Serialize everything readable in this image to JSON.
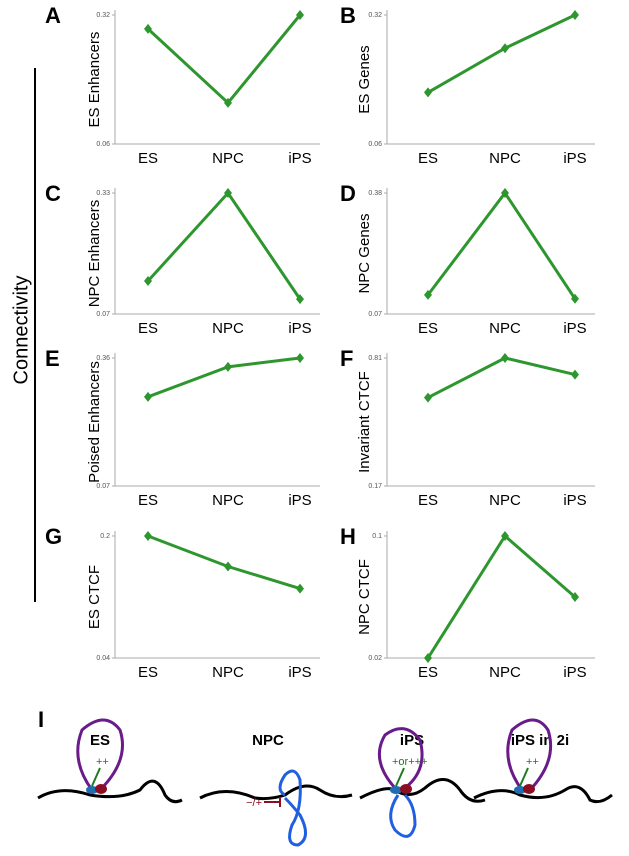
{
  "figure": {
    "side_label": "Connectivity"
  },
  "chart_data": [
    {
      "type": "line",
      "panel_label": "A",
      "ylabel": "ES Enhancers",
      "categories": [
        "ES",
        "NPC",
        "iPS"
      ],
      "values": [
        0.292,
        0.143,
        0.32
      ],
      "color": "#2e962e",
      "ylim": [
        0.06,
        0.32
      ],
      "yticks": [
        0.06,
        0.32
      ]
    },
    {
      "type": "line",
      "panel_label": "B",
      "ylabel": "ES Genes",
      "categories": [
        "ES",
        "NPC",
        "iPS"
      ],
      "values": [
        0.164,
        0.253,
        0.32
      ],
      "color": "#2e962e",
      "ylim": [
        0.06,
        0.32
      ],
      "yticks": [
        0.06,
        0.32
      ]
    },
    {
      "type": "line",
      "panel_label": "C",
      "ylabel": "NPC Enhancers",
      "categories": [
        "ES",
        "NPC",
        "iPS"
      ],
      "values": [
        0.141,
        0.33,
        0.102
      ],
      "color": "#2e962e",
      "ylim": [
        0.07,
        0.33
      ],
      "yticks": [
        0.07,
        0.33
      ]
    },
    {
      "type": "line",
      "panel_label": "D",
      "ylabel": "NPC Genes",
      "categories": [
        "ES",
        "NPC",
        "iPS"
      ],
      "values": [
        0.119,
        0.38,
        0.109
      ],
      "color": "#2e962e",
      "ylim": [
        0.07,
        0.38
      ],
      "yticks": [
        0.07,
        0.38
      ]
    },
    {
      "type": "line",
      "panel_label": "E",
      "ylabel": "Poised Enhancers",
      "categories": [
        "ES",
        "NPC",
        "iPS"
      ],
      "values": [
        0.272,
        0.34,
        0.36
      ],
      "color": "#2e962e",
      "ylim": [
        0.07,
        0.36
      ],
      "yticks": [
        0.07,
        0.36
      ]
    },
    {
      "type": "line",
      "panel_label": "F",
      "ylabel": "Invariant CTCF",
      "categories": [
        "ES",
        "NPC",
        "iPS"
      ],
      "values": [
        0.612,
        0.81,
        0.727
      ],
      "color": "#2e962e",
      "ylim": [
        0.17,
        0.81
      ],
      "yticks": [
        0.17,
        0.81
      ]
    },
    {
      "type": "line",
      "panel_label": "G",
      "ylabel": "ES CTCF",
      "categories": [
        "ES",
        "NPC",
        "iPS"
      ],
      "values": [
        0.2,
        0.16,
        0.131
      ],
      "color": "#2e962e",
      "ylim": [
        0.04,
        0.2
      ],
      "yticks": [
        0.04,
        0.2
      ]
    },
    {
      "type": "line",
      "panel_label": "H",
      "ylabel": "NPC CTCF",
      "categories": [
        "ES",
        "NPC",
        "iPS"
      ],
      "values": [
        0.02,
        0.1,
        0.06
      ],
      "color": "#2e962e",
      "ylim": [
        0.02,
        0.1
      ],
      "yticks": [
        0.02,
        0.1
      ]
    }
  ],
  "diagram": {
    "panel_label": "I",
    "states": [
      {
        "title": "ES",
        "annotation": "++"
      },
      {
        "title": "NPC",
        "annotation": "−/+"
      },
      {
        "title": "iPS",
        "annotation": "+or+++"
      },
      {
        "title": "iPS in 2i",
        "annotation": "++"
      }
    ]
  }
}
